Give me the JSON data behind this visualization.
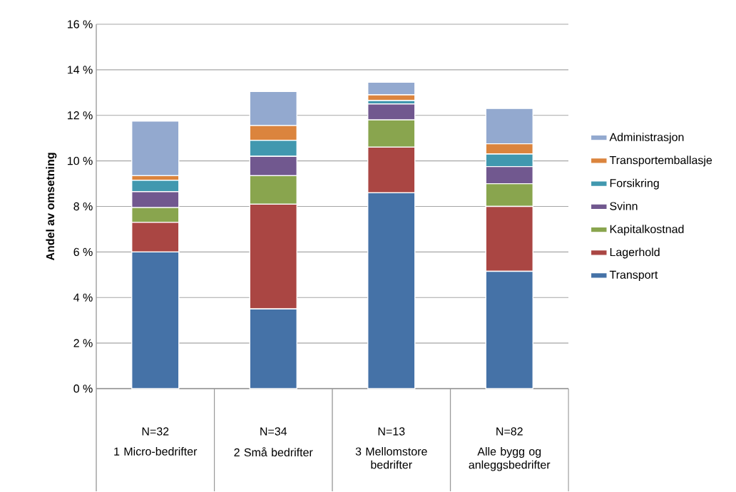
{
  "chart_data": {
    "type": "bar",
    "stacked": true,
    "ylabel": "Andel av omsetning",
    "categories": [
      "1 Micro-bedrifter",
      "2 Små bedrifter",
      "3 Mellomstore bedrifter",
      "Alle bygg og anleggsbedrifter"
    ],
    "annotations": [
      "N=32",
      "N=34",
      "N=13",
      "N=82"
    ],
    "series": [
      {
        "name": "Transport",
        "color": "#4572a7",
        "values": [
          6.0,
          3.5,
          8.6,
          5.15
        ]
      },
      {
        "name": "Lagerhold",
        "color": "#aa4643",
        "values": [
          1.3,
          4.6,
          2.0,
          2.85
        ]
      },
      {
        "name": "Kapitalkostnad",
        "color": "#89a54e",
        "values": [
          0.65,
          1.25,
          1.2,
          1.0
        ]
      },
      {
        "name": "Svinn",
        "color": "#71588f",
        "values": [
          0.7,
          0.85,
          0.7,
          0.75
        ]
      },
      {
        "name": "Forsikring",
        "color": "#4198af",
        "values": [
          0.5,
          0.7,
          0.15,
          0.55
        ]
      },
      {
        "name": "Transportemballasje",
        "color": "#db843d",
        "values": [
          0.2,
          0.65,
          0.25,
          0.45
        ]
      },
      {
        "name": "Administrasjon",
        "color": "#93a9cf",
        "values": [
          2.4,
          1.5,
          0.55,
          1.55
        ]
      }
    ],
    "ylim": [
      0,
      16
    ],
    "yticks": [
      {
        "value": 0,
        "label": "0 %"
      },
      {
        "value": 2,
        "label": "2 %"
      },
      {
        "value": 4,
        "label": "4 %"
      },
      {
        "value": 6,
        "label": "6 %"
      },
      {
        "value": 8,
        "label": "8 %"
      },
      {
        "value": 10,
        "label": "10 %"
      },
      {
        "value": 12,
        "label": "12 %"
      },
      {
        "value": 14,
        "label": "14 %"
      },
      {
        "value": 16,
        "label": "16 %"
      }
    ],
    "grid": "y",
    "legend": "right"
  }
}
